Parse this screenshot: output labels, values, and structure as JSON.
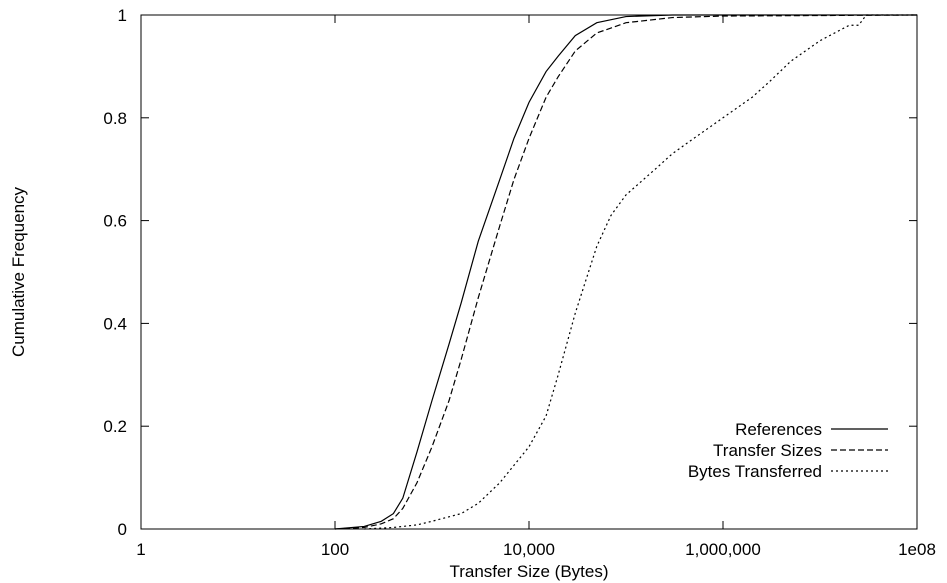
{
  "chart_data": {
    "type": "line",
    "xlabel": "Transfer Size (Bytes)",
    "ylabel": "Cumulative Frequency",
    "x_scale": "log",
    "xlim": [
      1,
      100000000
    ],
    "ylim": [
      0,
      1
    ],
    "x_ticks": [
      {
        "value": 1,
        "label": "1"
      },
      {
        "value": 100,
        "label": "100"
      },
      {
        "value": 10000,
        "label": "10,000"
      },
      {
        "value": 1000000,
        "label": "1,000,000"
      },
      {
        "value": 100000000,
        "label": "1e08"
      }
    ],
    "y_ticks": [
      {
        "value": 0,
        "label": "0"
      },
      {
        "value": 0.2,
        "label": "0.2"
      },
      {
        "value": 0.4,
        "label": "0.4"
      },
      {
        "value": 0.6,
        "label": "0.6"
      },
      {
        "value": 0.8,
        "label": "0.8"
      },
      {
        "value": 1,
        "label": "1"
      }
    ],
    "legend_position": "bottom-right",
    "series": [
      {
        "name": "References",
        "dash": "solid",
        "points": [
          [
            100,
            0
          ],
          [
            200,
            0.005
          ],
          [
            300,
            0.015
          ],
          [
            400,
            0.03
          ],
          [
            500,
            0.06
          ],
          [
            700,
            0.15
          ],
          [
            1000,
            0.25
          ],
          [
            1500,
            0.36
          ],
          [
            2000,
            0.44
          ],
          [
            3000,
            0.56
          ],
          [
            5000,
            0.68
          ],
          [
            7000,
            0.76
          ],
          [
            10000,
            0.83
          ],
          [
            15000,
            0.89
          ],
          [
            20000,
            0.92
          ],
          [
            30000,
            0.96
          ],
          [
            50000,
            0.985
          ],
          [
            100000,
            0.997
          ],
          [
            300000,
            1
          ],
          [
            100000000,
            1
          ]
        ]
      },
      {
        "name": "Transfer Sizes",
        "dash": "dashed",
        "points": [
          [
            100,
            0
          ],
          [
            200,
            0.003
          ],
          [
            300,
            0.01
          ],
          [
            400,
            0.02
          ],
          [
            500,
            0.04
          ],
          [
            700,
            0.09
          ],
          [
            1000,
            0.16
          ],
          [
            1500,
            0.25
          ],
          [
            2000,
            0.33
          ],
          [
            3000,
            0.45
          ],
          [
            5000,
            0.59
          ],
          [
            7000,
            0.68
          ],
          [
            10000,
            0.76
          ],
          [
            15000,
            0.84
          ],
          [
            20000,
            0.88
          ],
          [
            30000,
            0.93
          ],
          [
            50000,
            0.965
          ],
          [
            100000,
            0.985
          ],
          [
            300000,
            0.995
          ],
          [
            1000000,
            0.998
          ],
          [
            100000000,
            1
          ]
        ]
      },
      {
        "name": "Bytes Transferred",
        "dash": "dotted",
        "points": [
          [
            200,
            0
          ],
          [
            400,
            0.003
          ],
          [
            700,
            0.008
          ],
          [
            1000,
            0.015
          ],
          [
            2000,
            0.03
          ],
          [
            3000,
            0.05
          ],
          [
            5000,
            0.09
          ],
          [
            10000,
            0.16
          ],
          [
            15000,
            0.22
          ],
          [
            20000,
            0.3
          ],
          [
            30000,
            0.42
          ],
          [
            50000,
            0.55
          ],
          [
            70000,
            0.61
          ],
          [
            100000,
            0.65
          ],
          [
            200000,
            0.7
          ],
          [
            300000,
            0.73
          ],
          [
            500000,
            0.76
          ],
          [
            1000000,
            0.8
          ],
          [
            2000000,
            0.84
          ],
          [
            3000000,
            0.87
          ],
          [
            5000000,
            0.91
          ],
          [
            10000000,
            0.95
          ],
          [
            20000000,
            0.98
          ],
          [
            25000000,
            0.98
          ],
          [
            30000000,
            1
          ],
          [
            100000000,
            1
          ]
        ]
      }
    ]
  }
}
